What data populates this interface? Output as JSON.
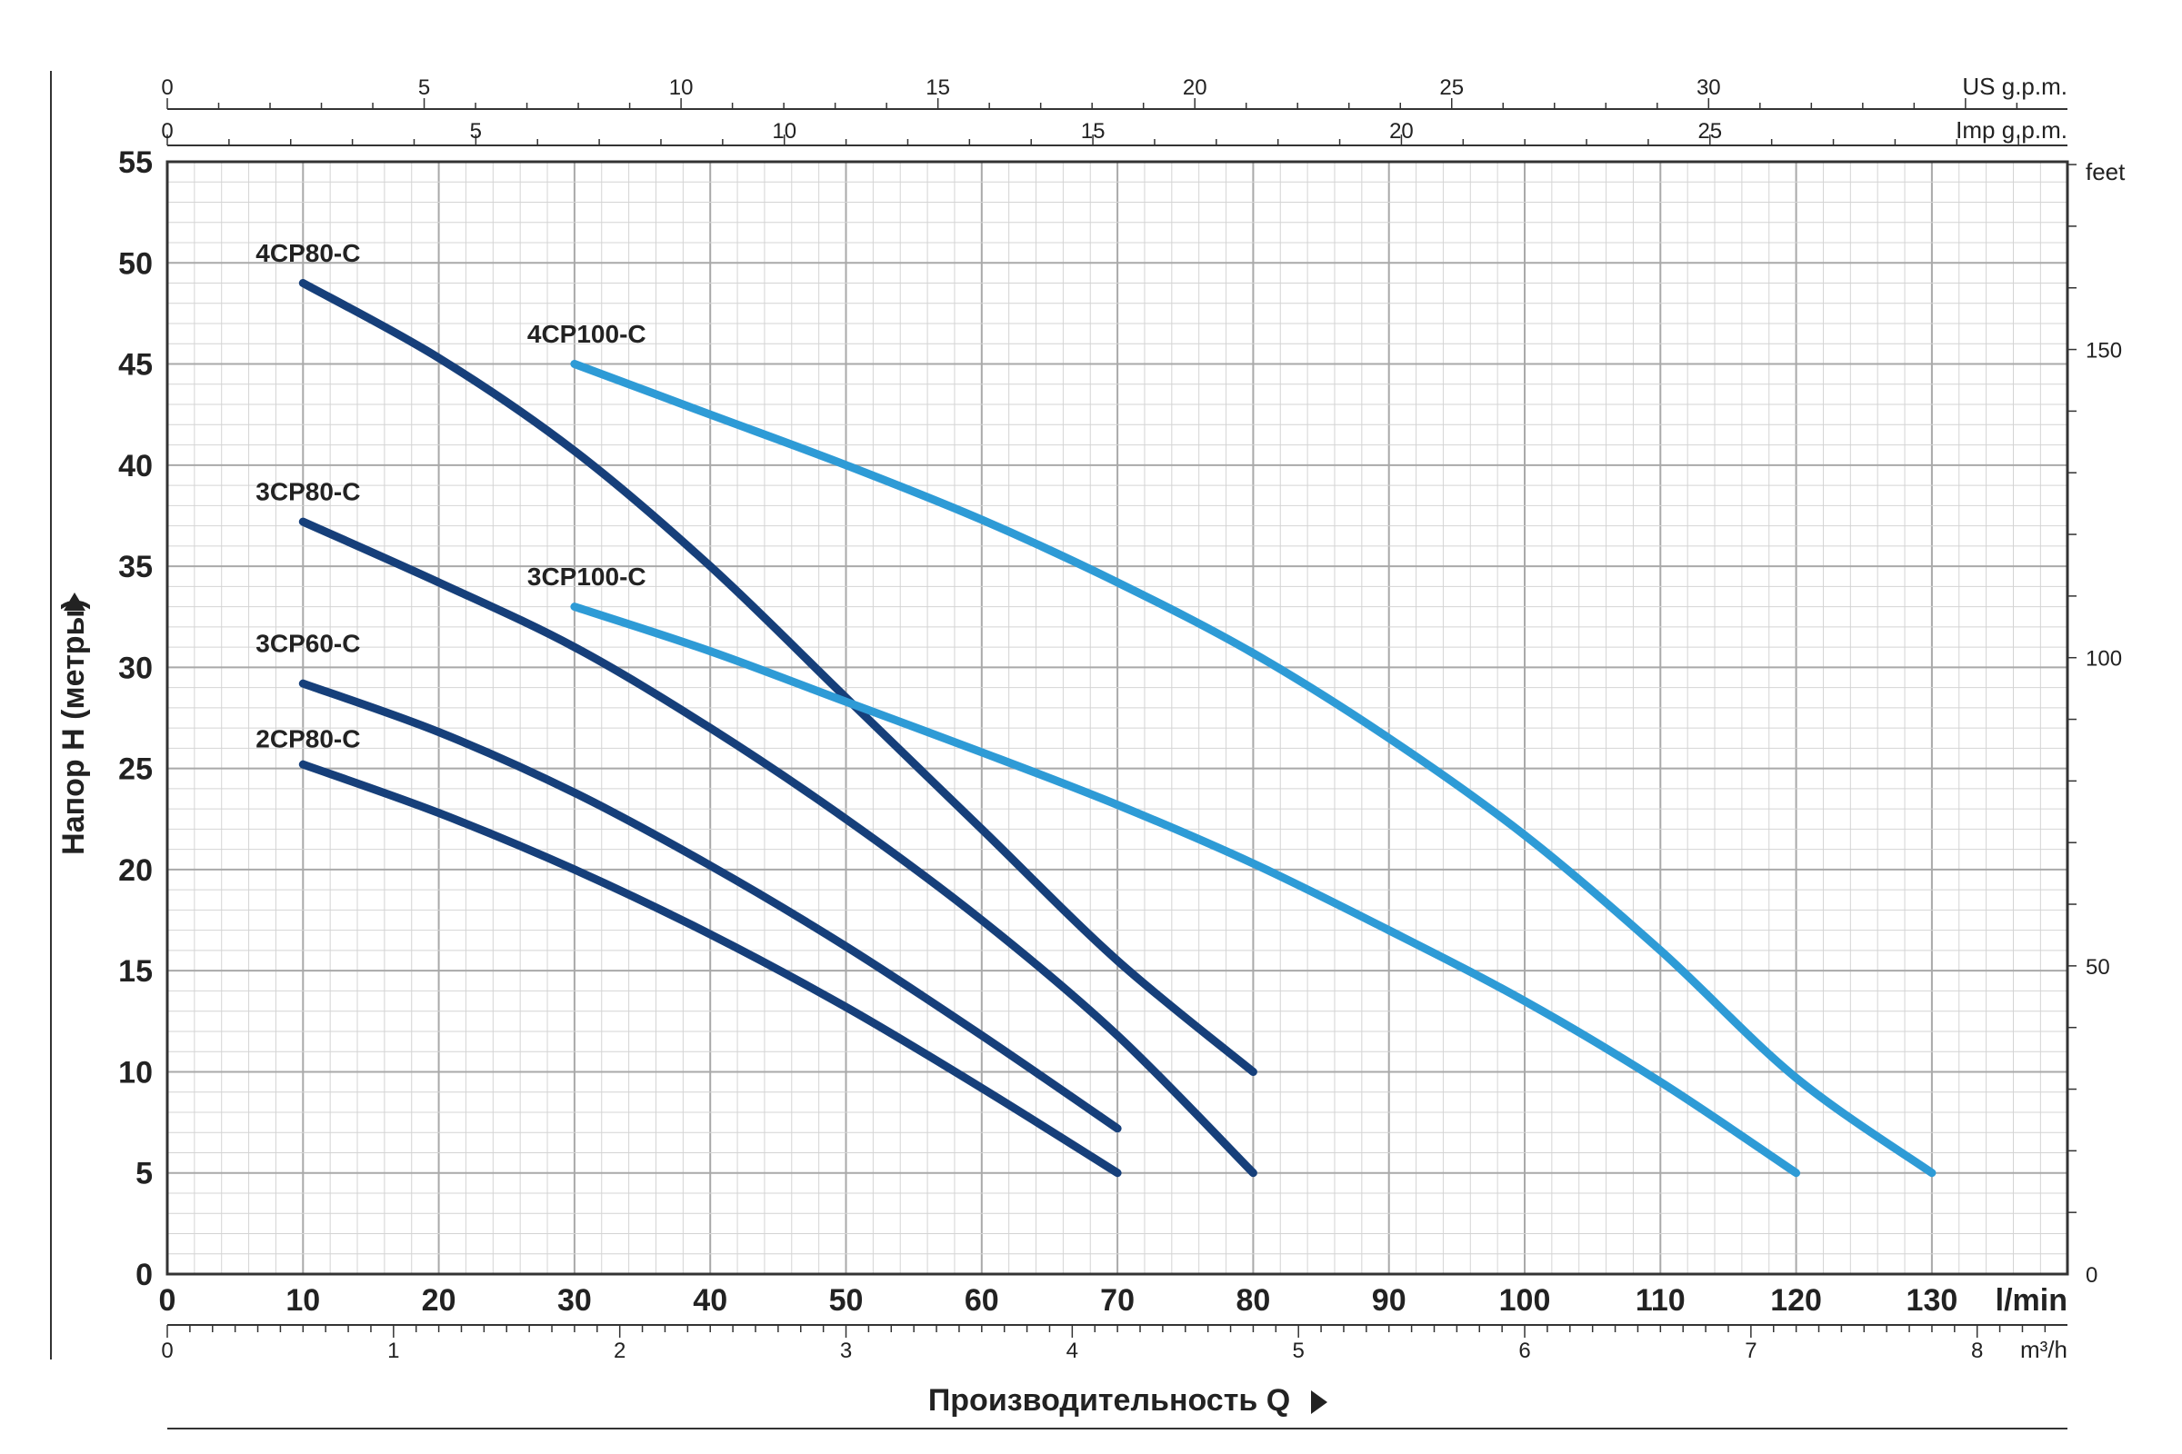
{
  "chart_data": {
    "type": "line",
    "xlabel": "Производительность Q",
    "ylabel": "Напор H (метры)",
    "xlim": [
      0,
      140
    ],
    "ylim": [
      0,
      55
    ],
    "x_unit": "l/min",
    "x_ticks": [
      0,
      10,
      20,
      30,
      40,
      50,
      60,
      70,
      80,
      90,
      100,
      110,
      120,
      130
    ],
    "y_ticks": [
      0,
      5,
      10,
      15,
      20,
      25,
      30,
      35,
      40,
      45,
      50,
      55
    ],
    "grid": true,
    "secondary_axes": {
      "top_us": {
        "unit": "US g.p.m.",
        "ticks": [
          0,
          5,
          10,
          15,
          20,
          25,
          30
        ]
      },
      "top_imp": {
        "unit": "Imp g.p.m.",
        "ticks": [
          0,
          5,
          10,
          15,
          20,
          25
        ]
      },
      "bottom_m3h": {
        "unit": "m³/h",
        "ticks": [
          0,
          1,
          2,
          3,
          4,
          5,
          6,
          7,
          8
        ]
      },
      "right_feet": {
        "unit": "feet",
        "ticks": [
          0,
          50,
          100,
          150
        ]
      }
    },
    "series": [
      {
        "name": "4CP80-C",
        "color": "#163f7a",
        "label_at": [
          10,
          50.5
        ],
        "points": [
          [
            10,
            49
          ],
          [
            20,
            45.3
          ],
          [
            30,
            40.7
          ],
          [
            40,
            35
          ],
          [
            50,
            28.5
          ],
          [
            60,
            22
          ],
          [
            70,
            15.5
          ],
          [
            80,
            10
          ]
        ]
      },
      {
        "name": "4CP100-C",
        "color": "#2e9bd6",
        "label_at": [
          30,
          46.5
        ],
        "points": [
          [
            30,
            45
          ],
          [
            40,
            42.5
          ],
          [
            50,
            40
          ],
          [
            60,
            37.3
          ],
          [
            70,
            34.2
          ],
          [
            80,
            30.7
          ],
          [
            90,
            26.5
          ],
          [
            100,
            21.7
          ],
          [
            110,
            16
          ],
          [
            120,
            9.7
          ],
          [
            130,
            5
          ]
        ]
      },
      {
        "name": "3CP80-C",
        "color": "#163f7a",
        "label_at": [
          10,
          38.7
        ],
        "points": [
          [
            10,
            37.2
          ],
          [
            20,
            34.2
          ],
          [
            30,
            31
          ],
          [
            40,
            27
          ],
          [
            50,
            22.5
          ],
          [
            60,
            17.5
          ],
          [
            70,
            11.8
          ],
          [
            80,
            5
          ]
        ]
      },
      {
        "name": "3CP100-C",
        "color": "#2e9bd6",
        "label_at": [
          30,
          34.5
        ],
        "points": [
          [
            30,
            33
          ],
          [
            40,
            30.8
          ],
          [
            50,
            28.3
          ],
          [
            60,
            25.8
          ],
          [
            70,
            23.2
          ],
          [
            80,
            20.3
          ],
          [
            90,
            17
          ],
          [
            100,
            13.5
          ],
          [
            110,
            9.5
          ],
          [
            120,
            5
          ]
        ]
      },
      {
        "name": "3CP60-C",
        "color": "#163f7a",
        "label_at": [
          10,
          31.2
        ],
        "points": [
          [
            10,
            29.2
          ],
          [
            20,
            26.8
          ],
          [
            30,
            23.8
          ],
          [
            40,
            20.2
          ],
          [
            50,
            16.2
          ],
          [
            60,
            11.8
          ],
          [
            70,
            7.2
          ]
        ]
      },
      {
        "name": "2CP80-C",
        "color": "#163f7a",
        "label_at": [
          10,
          26.5
        ],
        "points": [
          [
            10,
            25.2
          ],
          [
            20,
            22.8
          ],
          [
            30,
            20
          ],
          [
            40,
            16.8
          ],
          [
            50,
            13.2
          ],
          [
            60,
            9.2
          ],
          [
            70,
            5
          ]
        ]
      }
    ]
  }
}
